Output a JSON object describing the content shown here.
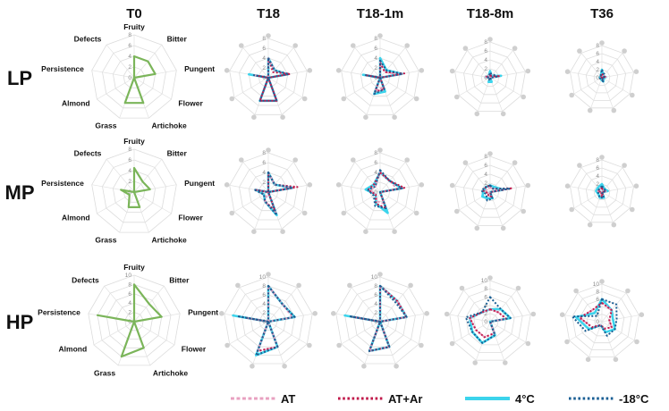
{
  "chart_data": {
    "type": "radar",
    "axes": [
      "Fruity",
      "Bitter",
      "Pungent",
      "Flower",
      "Artichoke",
      "Grass",
      "Almond",
      "Persistence",
      "Defects"
    ],
    "columns": [
      "T0",
      "T18",
      "T18-1m",
      "T18-8m",
      "T36"
    ],
    "rows": [
      "LP",
      "MP",
      "HP"
    ],
    "ticks": {
      "LP": [
        "0",
        "2",
        "4",
        "6",
        "8"
      ],
      "MP": [
        "0",
        "2",
        "4",
        "6",
        "8"
      ],
      "HP": [
        "0",
        "2",
        "4",
        "6",
        "8",
        "10"
      ]
    },
    "rmax": {
      "LP": 8,
      "MP": 8,
      "HP": 10
    },
    "legend": [
      {
        "key": "AT",
        "label": "AT",
        "color": "#e8a0c0",
        "dash": "3,2",
        "width": 2
      },
      {
        "key": "ATAr",
        "label": "AT+Ar",
        "color": "#c0184a",
        "dash": "2,2",
        "width": 2
      },
      {
        "key": "C4",
        "label": "4°C",
        "color": "#3cd4ec",
        "dash": "",
        "width": 2.6
      },
      {
        "key": "M18",
        "label": "-18°C",
        "color": "#1a5f94",
        "dash": "2,2",
        "width": 2
      }
    ],
    "t0_color": "#7bb55a",
    "t0": {
      "LP": [
        4,
        4,
        4,
        0,
        5,
        5,
        0,
        0,
        0
      ],
      "MP": [
        4.5,
        2.5,
        3,
        0,
        3,
        3,
        1,
        2.5,
        0
      ],
      "HP": [
        8,
        5,
        6,
        0,
        6,
        8,
        0,
        8,
        0
      ]
    },
    "panels": {
      "LP": [
        {
          "AT": [
            4,
            2,
            4,
            0,
            5,
            5,
            0,
            3,
            0
          ],
          "ATAr": [
            4,
            1.5,
            4.5,
            0,
            5,
            5,
            0,
            2.5,
            0
          ],
          "C4": [
            4,
            2,
            4,
            0,
            5,
            5,
            0,
            4,
            0
          ],
          "M18": [
            4,
            2,
            4.2,
            0,
            5,
            5,
            0,
            3,
            0
          ]
        },
        {
          "AT": [
            3.5,
            1.5,
            4,
            0,
            2,
            3,
            0,
            3,
            0
          ],
          "ATAr": [
            3,
            1.5,
            5,
            0,
            2.5,
            3,
            0,
            3,
            0
          ],
          "C4": [
            4,
            2,
            4.5,
            0,
            3,
            3.5,
            0,
            3.5,
            0
          ],
          "M18": [
            3.5,
            2,
            4.5,
            0,
            2.5,
            3.5,
            0,
            3,
            0
          ]
        },
        {
          "AT": [
            1,
            0.5,
            2,
            0,
            0,
            0,
            0,
            1,
            0.5
          ],
          "ATAr": [
            0.5,
            0.5,
            2,
            0,
            0.5,
            0.5,
            0,
            1,
            0.5
          ],
          "C4": [
            1.5,
            0.5,
            2.5,
            0,
            1,
            1,
            0,
            1,
            0.5
          ],
          "M18": [
            1,
            1,
            1.5,
            0,
            0.5,
            0.5,
            0,
            0.5,
            0.5
          ]
        },
        {
          "AT": [
            1,
            0.5,
            1,
            0,
            0.5,
            0.5,
            0,
            0.5,
            0.5
          ],
          "ATAr": [
            1,
            0.5,
            1,
            0,
            0.5,
            0.5,
            0,
            0.5,
            0.5
          ],
          "C4": [
            2,
            0.5,
            1,
            0.5,
            1,
            0.5,
            0,
            0.5,
            0.5
          ],
          "M18": [
            2,
            1,
            0.5,
            0,
            1,
            0.5,
            0.5,
            0.5,
            0.5
          ]
        }
      ],
      "MP": [
        {
          "AT": [
            4,
            2,
            5,
            0,
            4.5,
            2,
            0,
            2.5,
            0
          ],
          "ATAr": [
            4,
            2,
            6,
            0,
            4,
            2,
            1,
            2.5,
            0
          ],
          "C4": [
            4,
            2,
            5,
            0,
            5,
            2,
            1,
            2.5,
            0
          ],
          "M18": [
            4,
            2,
            5,
            0,
            5,
            2,
            1,
            3,
            0
          ]
        },
        {
          "AT": [
            4,
            3,
            3.5,
            0,
            2.5,
            2,
            1,
            2,
            1.5
          ],
          "ATAr": [
            4,
            3,
            5,
            0,
            3.5,
            2.5,
            1,
            2.5,
            2
          ],
          "C4": [
            4,
            3,
            4.5,
            0,
            4.5,
            2.5,
            1,
            3,
            2
          ],
          "M18": [
            4.5,
            3,
            4.5,
            0,
            3.5,
            3,
            1.5,
            2.5,
            1.5
          ]
        },
        {
          "AT": [
            1,
            1,
            3,
            0,
            1,
            1,
            0.5,
            1,
            1
          ],
          "ATAr": [
            1.5,
            1,
            5,
            0,
            1,
            1,
            0.5,
            1.5,
            1.5
          ],
          "C4": [
            1.5,
            1.5,
            3,
            0,
            1.5,
            1.5,
            2,
            1.5,
            1.5
          ],
          "M18": [
            1.5,
            1,
            4.5,
            0,
            1.5,
            2,
            1,
            2,
            1.5
          ]
        },
        {
          "AT": [
            1,
            0.5,
            1,
            0,
            1,
            1,
            0,
            1,
            1
          ],
          "ATAr": [
            1,
            0.5,
            1,
            0,
            1,
            1,
            0,
            1,
            1
          ],
          "C4": [
            2,
            1,
            1.5,
            0,
            1.5,
            1.5,
            1,
            1.5,
            1.5
          ],
          "M18": [
            1.5,
            1,
            1,
            0,
            1.5,
            1.5,
            1,
            1,
            1
          ]
        }
      ],
      "HP": [
        {
          "AT": [
            8,
            5,
            5.5,
            0,
            6,
            7,
            0,
            4.5,
            0
          ],
          "ATAr": [
            8,
            5,
            6,
            0,
            6,
            7,
            0,
            5,
            0
          ],
          "C4": [
            8,
            5,
            6,
            0,
            6,
            8,
            0,
            8,
            0
          ],
          "M18": [
            8,
            5,
            6,
            0,
            6,
            8,
            0,
            7,
            0
          ]
        },
        {
          "AT": [
            8,
            6,
            6,
            0,
            6,
            7,
            0,
            6,
            0
          ],
          "ATAr": [
            8,
            6,
            6,
            0,
            6,
            7,
            0,
            6.5,
            0
          ],
          "C4": [
            8,
            6,
            6,
            0,
            6,
            7,
            0,
            8,
            0
          ],
          "M18": [
            8,
            5.5,
            6,
            0,
            6,
            7,
            0,
            7,
            0
          ]
        },
        {
          "AT": [
            3,
            3,
            4,
            0,
            3,
            4,
            4,
            5,
            3
          ],
          "ATAr": [
            3,
            3,
            4,
            0,
            3,
            4,
            4,
            5,
            3
          ],
          "C4": [
            3,
            4,
            5,
            0,
            3.5,
            5.5,
            5,
            5,
            3
          ],
          "M18": [
            6,
            4,
            5,
            0,
            3.5,
            5.5,
            5,
            6,
            3
          ]
        },
        {
          "AT": [
            5,
            4,
            2,
            3,
            2,
            1,
            3,
            6,
            4
          ],
          "ATAr": [
            5,
            4,
            2,
            3,
            2,
            1,
            3,
            6,
            4
          ],
          "C4": [
            6,
            4,
            3,
            4,
            3,
            1,
            4,
            7,
            3
          ],
          "M18": [
            6,
            6,
            4,
            4,
            4,
            1,
            5,
            8,
            2
          ]
        }
      ]
    }
  }
}
